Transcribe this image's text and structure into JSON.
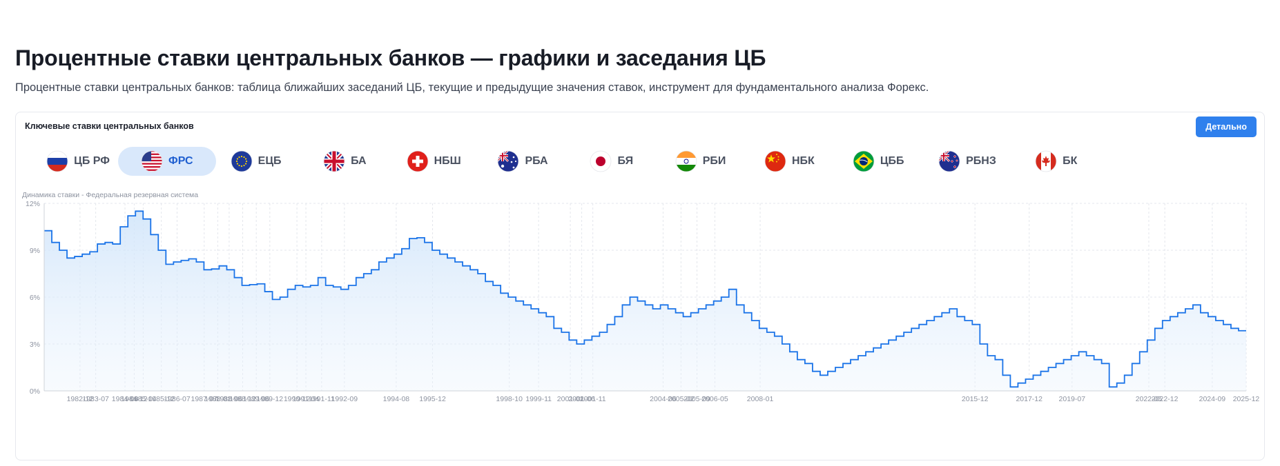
{
  "page": {
    "title": "Процентные ставки центральных банков — графики и заседания ЦБ",
    "subtitle": "Процентные ставки центральных банков: таблица ближайших заседаний ЦБ, текущие и предыдущие значения ставок, инструмент для фундаментального анализа Форекс."
  },
  "card": {
    "title": "Ключевые ставки центральных банков",
    "detail_label": "Детально"
  },
  "tabs": [
    {
      "label": "ЦБ РФ",
      "icon": "russia-flag-icon",
      "active": false
    },
    {
      "label": "ФРС",
      "icon": "usa-flag-icon",
      "active": true
    },
    {
      "label": "ЕЦБ",
      "icon": "eu-flag-icon",
      "active": false
    },
    {
      "label": "БА",
      "icon": "uk-flag-icon",
      "active": false
    },
    {
      "label": "НБШ",
      "icon": "switzerland-flag-icon",
      "active": false
    },
    {
      "label": "РБА",
      "icon": "australia-flag-icon",
      "active": false
    },
    {
      "label": "БЯ",
      "icon": "japan-flag-icon",
      "active": false
    },
    {
      "label": "РБИ",
      "icon": "india-flag-icon",
      "active": false
    },
    {
      "label": "НБК",
      "icon": "china-flag-icon",
      "active": false
    },
    {
      "label": "ЦББ",
      "icon": "brazil-flag-icon",
      "active": false
    },
    {
      "label": "РБНЗ",
      "icon": "new-zealand-flag-icon",
      "active": false
    },
    {
      "label": "БК",
      "icon": "canada-flag-icon",
      "active": false
    }
  ],
  "colors": {
    "accent": "#2f80ed",
    "line": "#1a73e8",
    "tab_active_bg": "#d9e8fb",
    "grid": "#e3e6ec"
  },
  "chart_data": {
    "type": "area",
    "step": true,
    "title": "Динамика ставки - Федеральная резервная система",
    "ylim": [
      0,
      12
    ],
    "yticks": [
      0,
      3,
      6,
      9,
      12
    ],
    "ytick_labels": [
      "0%",
      "3%",
      "6%",
      "9%",
      "12%"
    ],
    "xlim": [
      1981.6,
      2025.92
    ],
    "xticks": [
      {
        "label": "1982-12",
        "x": 1982.92
      },
      {
        "label": "1983-07",
        "x": 1983.5
      },
      {
        "label": "1984-08",
        "x": 1984.58
      },
      {
        "label": "1984-12",
        "x": 1984.92
      },
      {
        "label": "1985-04",
        "x": 1985.25
      },
      {
        "label": "1985-12",
        "x": 1985.92
      },
      {
        "label": "1986-07",
        "x": 1986.5
      },
      {
        "label": "1987-07",
        "x": 1987.5
      },
      {
        "label": "1988-01",
        "x": 1988.0
      },
      {
        "label": "1988-06",
        "x": 1988.42
      },
      {
        "label": "1988-12",
        "x": 1988.92
      },
      {
        "label": "1989-06",
        "x": 1989.42
      },
      {
        "label": "1989-12",
        "x": 1989.92
      },
      {
        "label": "1990-12",
        "x": 1990.92
      },
      {
        "label": "1991-04",
        "x": 1991.25
      },
      {
        "label": "1991-11",
        "x": 1991.83
      },
      {
        "label": "1992-09",
        "x": 1992.67
      },
      {
        "label": "1994-08",
        "x": 1994.58
      },
      {
        "label": "1995-12",
        "x": 1995.92
      },
      {
        "label": "1998-10",
        "x": 1998.75
      },
      {
        "label": "1999-11",
        "x": 1999.83
      },
      {
        "label": "2001-01",
        "x": 2001.0
      },
      {
        "label": "2001-06",
        "x": 2001.42
      },
      {
        "label": "2001-11",
        "x": 2001.83
      },
      {
        "label": "2004-06",
        "x": 2004.42
      },
      {
        "label": "2005-02",
        "x": 2005.08
      },
      {
        "label": "2005-09",
        "x": 2005.67
      },
      {
        "label": "2006-05",
        "x": 2006.33
      },
      {
        "label": "2008-01",
        "x": 2008.0
      },
      {
        "label": "2015-12",
        "x": 2015.92
      },
      {
        "label": "2017-12",
        "x": 2017.92
      },
      {
        "label": "2019-07",
        "x": 2019.5
      },
      {
        "label": "2022-05",
        "x": 2022.33
      },
      {
        "label": "2022-12",
        "x": 2022.92
      },
      {
        "label": "2024-09",
        "x": 2024.67
      },
      {
        "label": "2025-12",
        "x": 2025.92
      }
    ],
    "x_index_range": [
      0,
      200
    ],
    "values": [
      10.25,
      9.5,
      9.0,
      8.5,
      8.6,
      8.75,
      8.9,
      9.4,
      9.5,
      9.4,
      10.5,
      11.2,
      11.5,
      11.0,
      10.0,
      9.0,
      8.1,
      8.25,
      8.35,
      8.45,
      8.25,
      7.75,
      7.8,
      8.0,
      7.75,
      7.25,
      6.75,
      6.8,
      6.85,
      6.35,
      5.85,
      6.0,
      6.5,
      6.75,
      6.65,
      6.75,
      7.25,
      6.75,
      6.65,
      6.5,
      6.75,
      7.25,
      7.5,
      7.75,
      8.25,
      8.5,
      8.75,
      9.1,
      9.75,
      9.8,
      9.5,
      9.0,
      8.75,
      8.5,
      8.25,
      8.0,
      7.75,
      7.5,
      7.0,
      6.75,
      6.25,
      6.0,
      5.75,
      5.5,
      5.25,
      5.0,
      4.75,
      4.0,
      3.75,
      3.25,
      3.0,
      3.25,
      3.5,
      3.75,
      4.25,
      4.75,
      5.5,
      6.0,
      5.75,
      5.5,
      5.25,
      5.5,
      5.25,
      5.0,
      4.75,
      5.0,
      5.25,
      5.5,
      5.75,
      6.0,
      6.5,
      5.5,
      5.0,
      4.5,
      4.0,
      3.75,
      3.5,
      3.0,
      2.5,
      2.0,
      1.75,
      1.25,
      1.0,
      1.25,
      1.5,
      1.75,
      2.0,
      2.25,
      2.5,
      2.75,
      3.0,
      3.25,
      3.5,
      3.75,
      4.0,
      4.25,
      4.5,
      4.75,
      5.0,
      5.25,
      4.75,
      4.5,
      4.25,
      3.0,
      2.25,
      2.0,
      1.0,
      0.25,
      0.5,
      0.75,
      1.0,
      1.25,
      1.5,
      1.75,
      2.0,
      2.25,
      2.5,
      2.25,
      2.0,
      1.75,
      0.25,
      0.5,
      1.0,
      1.75,
      2.5,
      3.25,
      4.0,
      4.5,
      4.75,
      5.0,
      5.25,
      5.5,
      5.0,
      4.75,
      4.5,
      4.25,
      4.0,
      3.85
    ],
    "grid": true,
    "legend": false
  }
}
